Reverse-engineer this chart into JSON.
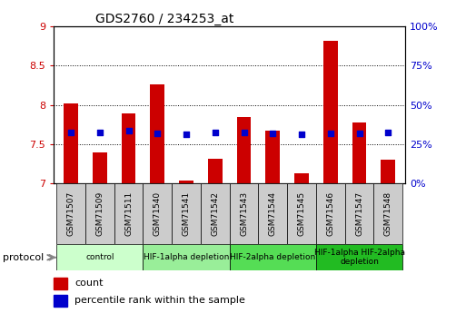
{
  "title": "GDS2760 / 234253_at",
  "samples": [
    "GSM71507",
    "GSM71509",
    "GSM71511",
    "GSM71540",
    "GSM71541",
    "GSM71542",
    "GSM71543",
    "GSM71544",
    "GSM71545",
    "GSM71546",
    "GSM71547",
    "GSM71548"
  ],
  "count_values": [
    8.02,
    7.39,
    7.89,
    8.26,
    7.03,
    7.31,
    7.84,
    7.67,
    7.12,
    8.82,
    7.77,
    7.3
  ],
  "percentile_values": [
    7.65,
    7.65,
    7.67,
    7.63,
    7.62,
    7.65,
    7.65,
    7.64,
    7.62,
    7.64,
    7.64,
    7.65
  ],
  "ylim": [
    7.0,
    9.0
  ],
  "yticks": [
    7.0,
    7.5,
    8.0,
    8.5,
    9.0
  ],
  "ytick_labels": [
    "7",
    "7.5",
    "8",
    "8.5",
    "9"
  ],
  "y2ticks": [
    0,
    25,
    50,
    75,
    100
  ],
  "y2labels": [
    "0%",
    "25%",
    "50%",
    "75%",
    "100%"
  ],
  "bar_color": "#cc0000",
  "dot_color": "#0000cc",
  "protocol_groups": [
    {
      "label": "control",
      "start": 0,
      "end": 2,
      "color": "#ccffcc"
    },
    {
      "label": "HIF-1alpha depletion",
      "start": 3,
      "end": 5,
      "color": "#99ee99"
    },
    {
      "label": "HIF-2alpha depletion",
      "start": 6,
      "end": 8,
      "color": "#55dd55"
    },
    {
      "label": "HIF-1alpha HIF-2alpha\ndepletion",
      "start": 9,
      "end": 11,
      "color": "#22bb22"
    }
  ],
  "left_ytick_color": "#cc0000",
  "right_ytick_color": "#0000cc",
  "bar_width": 0.5,
  "sample_box_color": "#cccccc",
  "figure_bg": "#ffffff"
}
